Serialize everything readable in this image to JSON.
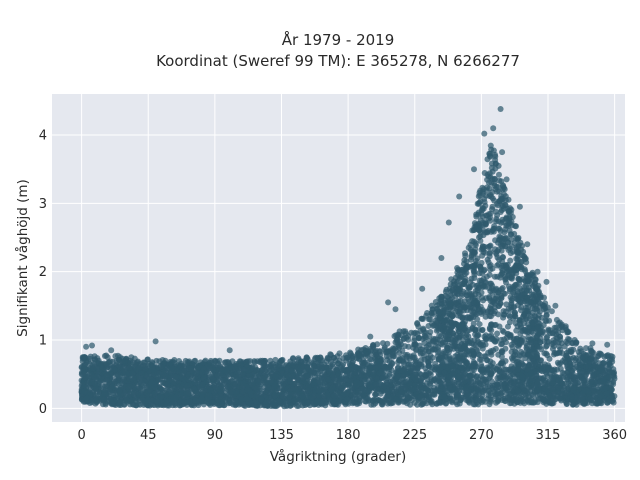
{
  "chart_data": {
    "type": "scatter",
    "title": "År 1979 - 2019",
    "subtitle": "Koordinat (Sweref 99 TM): E 365278, N 6266277",
    "xlabel": "Vågriktning (grader)",
    "ylabel": "Signifikant våghöjd (m)",
    "xlim": [
      -20,
      367
    ],
    "ylim": [
      -0.2,
      4.6
    ],
    "xticks": [
      0,
      45,
      90,
      135,
      180,
      225,
      270,
      315,
      360
    ],
    "xtick_labels": [
      "0",
      "45",
      "90",
      "135",
      "180",
      "225",
      "270",
      "315",
      "360"
    ],
    "yticks": [
      0,
      1,
      2,
      3,
      4
    ],
    "ytick_labels": [
      "0",
      "1",
      "2",
      "3",
      "4"
    ],
    "grid": true,
    "marker_color": "#2f5a6e",
    "background_color": "#e5e8ef",
    "envelope": {
      "x": [
        0,
        20,
        45,
        90,
        135,
        180,
        200,
        225,
        245,
        262,
        270,
        277,
        285,
        300,
        315,
        335,
        360
      ],
      "y_max": [
        0.75,
        0.78,
        0.72,
        0.7,
        0.72,
        0.82,
        0.95,
        1.25,
        1.7,
        2.4,
        3.3,
        3.9,
        3.3,
        2.2,
        1.5,
        0.95,
        0.75
      ],
      "y_min": [
        0.08,
        0.05,
        0.04,
        0.04,
        0.03,
        0.05,
        0.05,
        0.05,
        0.06,
        0.05,
        0.05,
        0.06,
        0.06,
        0.05,
        0.06,
        0.05,
        0.08
      ]
    },
    "outliers": [
      {
        "x": 283,
        "y": 4.38
      },
      {
        "x": 278,
        "y": 4.1
      },
      {
        "x": 272,
        "y": 4.02
      },
      {
        "x": 284,
        "y": 3.75
      },
      {
        "x": 265,
        "y": 3.5
      },
      {
        "x": 287,
        "y": 3.35
      },
      {
        "x": 255,
        "y": 3.1
      },
      {
        "x": 296,
        "y": 2.95
      },
      {
        "x": 248,
        "y": 2.72
      },
      {
        "x": 301,
        "y": 2.4
      },
      {
        "x": 243,
        "y": 2.2
      },
      {
        "x": 308,
        "y": 2.0
      },
      {
        "x": 314,
        "y": 1.85
      },
      {
        "x": 230,
        "y": 1.75
      },
      {
        "x": 212,
        "y": 1.45
      },
      {
        "x": 207,
        "y": 1.55
      },
      {
        "x": 320,
        "y": 1.5
      },
      {
        "x": 327,
        "y": 1.2
      },
      {
        "x": 333,
        "y": 1.0
      },
      {
        "x": 195,
        "y": 1.05
      },
      {
        "x": 50,
        "y": 0.98
      },
      {
        "x": 7,
        "y": 0.92
      },
      {
        "x": 3,
        "y": 0.9
      },
      {
        "x": 20,
        "y": 0.85
      },
      {
        "x": 100,
        "y": 0.85
      },
      {
        "x": 355,
        "y": 0.93
      },
      {
        "x": 345,
        "y": 0.95
      }
    ]
  }
}
